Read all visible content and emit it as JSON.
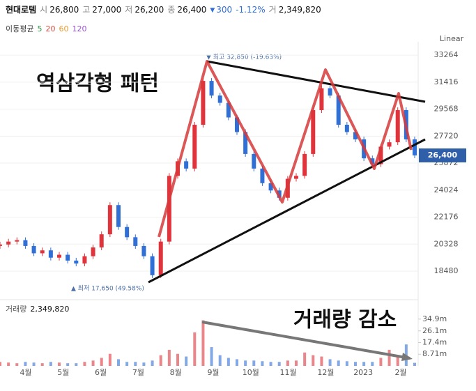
{
  "header": {
    "name": "현대로템",
    "open_label": "시",
    "open": "26,800",
    "high_label": "고",
    "high": "27,000",
    "low_label": "저",
    "low": "26,200",
    "close_label": "종",
    "close": "26,400",
    "change_arrow": "▼",
    "change": "300",
    "change_pct": "-1.12%",
    "volume_label": "거",
    "volume": "2,349,820"
  },
  "ma": {
    "title": "이동평균",
    "periods": [
      {
        "label": "5",
        "color": "#2e9d3e"
      },
      {
        "label": "20",
        "color": "#e0483c"
      },
      {
        "label": "60",
        "color": "#e89a2b"
      },
      {
        "label": "120",
        "color": "#9b4fd1"
      }
    ]
  },
  "scale_mode": "Linear",
  "annotations": {
    "pattern": "역삼각형 패턴",
    "volume_drop": "거래량 감소",
    "high_marker": "▼ 최고 32,850 (-19.63%)",
    "low_marker": "▲ 최저 17,650 (49.58%)"
  },
  "chart_data": {
    "type": "candlestick",
    "x_labels": [
      "4월",
      "5월",
      "6월",
      "7월",
      "8월",
      "9월",
      "10월",
      "11월",
      "12월",
      "2023",
      "2월"
    ],
    "closes": [
      20300,
      20500,
      20600,
      20200,
      19700,
      19900,
      19400,
      19600,
      19200,
      19000,
      19500,
      20100,
      21000,
      23000,
      21500,
      20800,
      20200,
      19500,
      18200,
      20500,
      25000,
      26000,
      25500,
      28500,
      31500,
      30500,
      30000,
      29000,
      28000,
      26500,
      25500,
      24500,
      24000,
      23500,
      24800,
      25000,
      26500,
      29500,
      31000,
      30500,
      28500,
      28000,
      27500,
      26200,
      25800,
      27000,
      27300,
      29500,
      27500,
      26400
    ],
    "ylim": [
      17000,
      33700
    ],
    "yticks": [
      33264,
      31416,
      29568,
      27720,
      25872,
      24024,
      22176,
      20328,
      18480
    ],
    "last_price": {
      "value": 26400,
      "label": "26,400"
    },
    "volume_title": "거래량",
    "volume_value": "2,349,820",
    "volumes": [
      3,
      2.5,
      2,
      3,
      2.5,
      2,
      3,
      2.5,
      2,
      2,
      3,
      4,
      6,
      9,
      5,
      3,
      3,
      2.5,
      4,
      8,
      12,
      9,
      7,
      25,
      34,
      14,
      8,
      6,
      5,
      4,
      4,
      3.5,
      3,
      3,
      4,
      4,
      10,
      8,
      7,
      5,
      4,
      3.5,
      3,
      3,
      3,
      6,
      12,
      8,
      16,
      2.3
    ],
    "vlim": [
      0,
      40
    ],
    "vticks": [
      {
        "value": 34.9,
        "label": "34.9m"
      },
      {
        "value": 26.1,
        "label": "26.1m"
      },
      {
        "value": 17.4,
        "label": "17.4m"
      },
      {
        "value": 8.71,
        "label": "8.71m"
      }
    ],
    "up_color": "#e0343c",
    "down_color": "#2f6fd6"
  }
}
